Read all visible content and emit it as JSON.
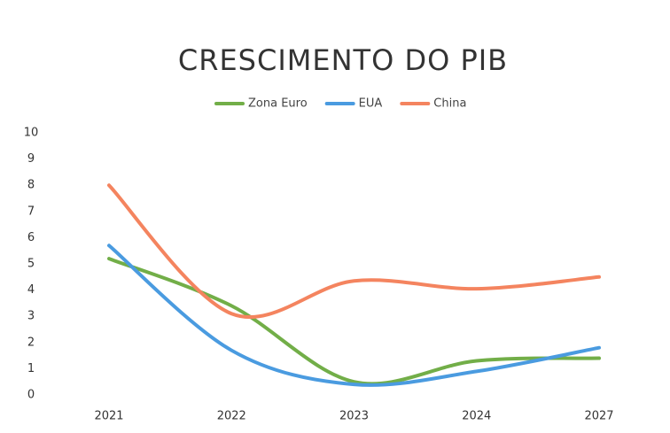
{
  "chart_data": {
    "type": "line",
    "title": "CRESCIMENTO DO PIB",
    "categories": [
      "2021",
      "2022",
      "2023",
      "2024",
      "2027"
    ],
    "series": [
      {
        "name": "Zona Euro",
        "color": "#72ae48",
        "values": [
          5.2,
          3.4,
          0.5,
          1.3,
          1.4
        ]
      },
      {
        "name": "EUA",
        "color": "#4a9be0",
        "values": [
          5.7,
          1.7,
          0.4,
          0.9,
          1.8
        ]
      },
      {
        "name": "China",
        "color": "#f4845f",
        "values": [
          8.0,
          3.1,
          4.35,
          4.05,
          4.5
        ]
      }
    ],
    "ylim": [
      0,
      10
    ],
    "yticks": [
      0,
      1,
      2,
      3,
      4,
      5,
      6,
      7,
      8,
      9,
      10
    ],
    "smooth": true,
    "grid": false,
    "legend": "top"
  }
}
